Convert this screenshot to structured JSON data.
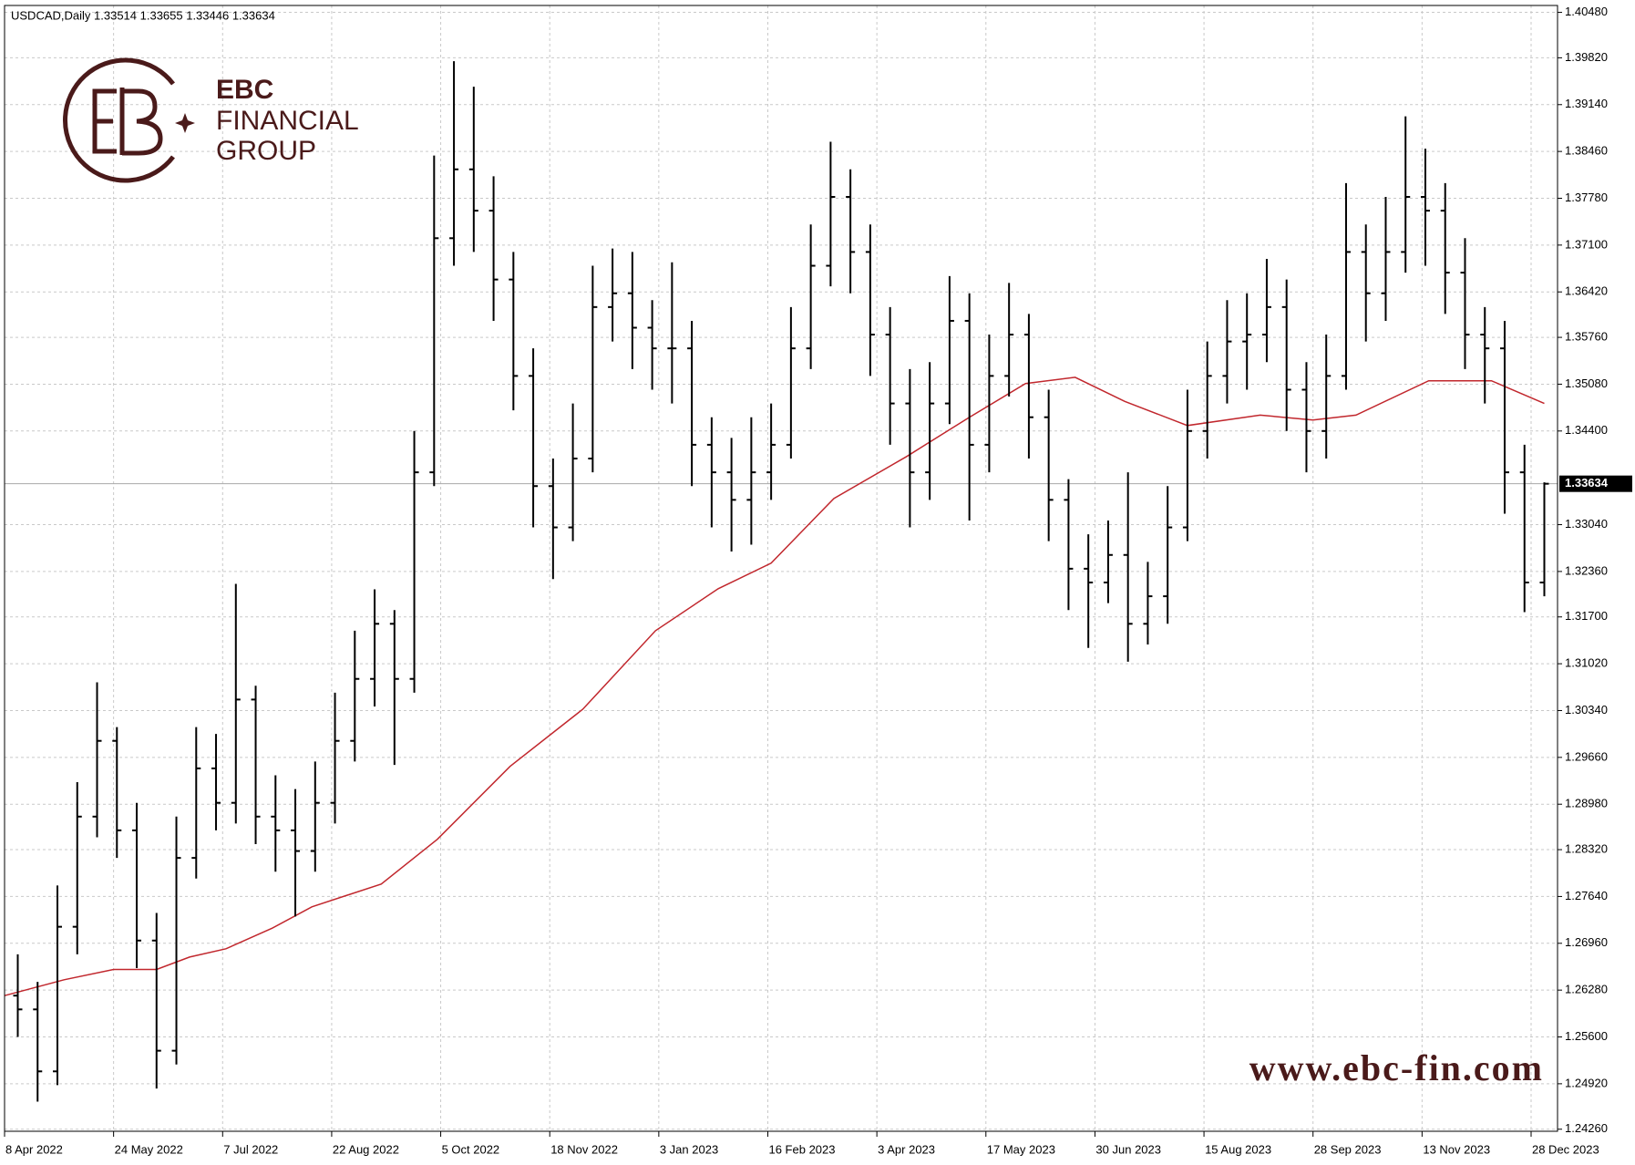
{
  "chart_data": {
    "type": "ohlc",
    "title": "USDCAD,Daily  1.33514 1.33655 1.33446 1.33634",
    "logo": [
      "EBC",
      "FINANCIAL",
      "GROUP"
    ],
    "watermark": "www.ebc-fin.com",
    "color": "#000000",
    "grid": true,
    "xlim": [
      0,
      470
    ],
    "ylim": [
      1.2423,
      1.4058
    ],
    "xticks": [
      {
        "value": 0,
        "label": "8 Apr 2022"
      },
      {
        "value": 33,
        "label": "24 May 2022"
      },
      {
        "value": 66,
        "label": "7 Jul 2022"
      },
      {
        "value": 99,
        "label": "22 Aug 2022"
      },
      {
        "value": 132,
        "label": "5 Oct 2022"
      },
      {
        "value": 165,
        "label": "18 Nov 2022"
      },
      {
        "value": 198,
        "label": "3 Jan 2023"
      },
      {
        "value": 231,
        "label": "16 Feb 2023"
      },
      {
        "value": 264,
        "label": "3 Apr 2023"
      },
      {
        "value": 297,
        "label": "17 May 2023"
      },
      {
        "value": 330,
        "label": "30 Jun 2023"
      },
      {
        "value": 363,
        "label": "15 Aug 2023"
      },
      {
        "value": 396,
        "label": "28 Sep 2023"
      },
      {
        "value": 429,
        "label": "13 Nov 2023"
      },
      {
        "value": 462,
        "label": "28 Dec 2023"
      }
    ],
    "yticks": [
      {
        "value": 1.4048,
        "label": "1.40480"
      },
      {
        "value": 1.3982,
        "label": "1.39820"
      },
      {
        "value": 1.3914,
        "label": "1.39140"
      },
      {
        "value": 1.3846,
        "label": "1.38460"
      },
      {
        "value": 1.3778,
        "label": "1.37780"
      },
      {
        "value": 1.371,
        "label": "1.37100"
      },
      {
        "value": 1.3642,
        "label": "1.36420"
      },
      {
        "value": 1.3576,
        "label": "1.35760"
      },
      {
        "value": 1.3508,
        "label": "1.35080"
      },
      {
        "value": 1.344,
        "label": "1.34400"
      },
      {
        "value": 1.3304,
        "label": "1.33040"
      },
      {
        "value": 1.3236,
        "label": "1.32360"
      },
      {
        "value": 1.317,
        "label": "1.31700"
      },
      {
        "value": 1.3102,
        "label": "1.31020"
      },
      {
        "value": 1.3034,
        "label": "1.30340"
      },
      {
        "value": 1.2966,
        "label": "1.29660"
      },
      {
        "value": 1.2898,
        "label": "1.28980"
      },
      {
        "value": 1.2832,
        "label": "1.28320"
      },
      {
        "value": 1.2764,
        "label": "1.27640"
      },
      {
        "value": 1.2696,
        "label": "1.26960"
      },
      {
        "value": 1.2628,
        "label": "1.26280"
      },
      {
        "value": 1.256,
        "label": "1.25600"
      },
      {
        "value": 1.2492,
        "label": "1.24920"
      },
      {
        "value": 1.2426,
        "label": "1.24260"
      }
    ],
    "last_price": {
      "value": 1.33634,
      "label": "1.33634"
    },
    "x": [
      4,
      10,
      16,
      22,
      28,
      34,
      40,
      46,
      52,
      58,
      64,
      70,
      76,
      82,
      88,
      94,
      100,
      106,
      112,
      118,
      124,
      130,
      136,
      142,
      148,
      154,
      160,
      166,
      172,
      178,
      184,
      190,
      196,
      202,
      208,
      214,
      220,
      226,
      232,
      238,
      244,
      250,
      256,
      262,
      268,
      274,
      280,
      286,
      292,
      298,
      304,
      310,
      316,
      322,
      328,
      334,
      340,
      346,
      352,
      358,
      364,
      370,
      376,
      382,
      388,
      394,
      400,
      406,
      412,
      418,
      424,
      430,
      436,
      442,
      448,
      454,
      460,
      466
    ],
    "open": [
      1.262,
      1.26,
      1.251,
      1.272,
      1.288,
      1.299,
      1.286,
      1.27,
      1.254,
      1.282,
      1.295,
      1.29,
      1.305,
      1.288,
      1.286,
      1.283,
      1.29,
      1.299,
      1.308,
      1.316,
      1.308,
      1.338,
      1.372,
      1.382,
      1.376,
      1.366,
      1.352,
      1.336,
      1.33,
      1.34,
      1.362,
      1.364,
      1.359,
      1.356,
      1.356,
      1.342,
      1.338,
      1.334,
      1.338,
      1.342,
      1.356,
      1.368,
      1.378,
      1.37,
      1.358,
      1.348,
      1.338,
      1.348,
      1.36,
      1.342,
      1.352,
      1.358,
      1.346,
      1.334,
      1.324,
      1.322,
      1.326,
      1.316,
      1.32,
      1.33,
      1.344,
      1.352,
      1.357,
      1.358,
      1.362,
      1.35,
      1.344,
      1.352,
      1.37,
      1.364,
      1.37,
      1.378,
      1.376,
      1.367,
      1.358,
      1.356,
      1.338,
      1.322
    ],
    "high": [
      1.268,
      1.264,
      1.278,
      1.293,
      1.3075,
      1.301,
      1.29,
      1.274,
      1.288,
      1.301,
      1.3,
      1.3218,
      1.307,
      1.294,
      1.292,
      1.296,
      1.306,
      1.315,
      1.321,
      1.318,
      1.344,
      1.384,
      1.3977,
      1.394,
      1.381,
      1.37,
      1.356,
      1.34,
      1.348,
      1.368,
      1.3705,
      1.37,
      1.363,
      1.3685,
      1.36,
      1.346,
      1.343,
      1.346,
      1.348,
      1.362,
      1.374,
      1.386,
      1.382,
      1.374,
      1.362,
      1.353,
      1.354,
      1.3665,
      1.364,
      1.358,
      1.3655,
      1.361,
      1.35,
      1.337,
      1.329,
      1.331,
      1.338,
      1.325,
      1.336,
      1.35,
      1.357,
      1.363,
      1.364,
      1.369,
      1.366,
      1.354,
      1.358,
      1.38,
      1.374,
      1.378,
      1.3897,
      1.385,
      1.38,
      1.372,
      1.362,
      1.36,
      1.342,
      1.33655
    ],
    "low": [
      1.256,
      1.2466,
      1.249,
      1.268,
      1.285,
      1.282,
      1.266,
      1.2485,
      1.252,
      1.279,
      1.286,
      1.287,
      1.284,
      1.28,
      1.2735,
      1.28,
      1.287,
      1.296,
      1.304,
      1.2955,
      1.306,
      1.336,
      1.368,
      1.37,
      1.36,
      1.347,
      1.33,
      1.3225,
      1.328,
      1.338,
      1.357,
      1.353,
      1.35,
      1.348,
      1.336,
      1.33,
      1.3265,
      1.3275,
      1.334,
      1.34,
      1.353,
      1.365,
      1.364,
      1.352,
      1.342,
      1.33,
      1.334,
      1.345,
      1.331,
      1.338,
      1.349,
      1.34,
      1.328,
      1.318,
      1.3125,
      1.319,
      1.3105,
      1.313,
      1.316,
      1.328,
      1.34,
      1.348,
      1.35,
      1.354,
      1.344,
      1.338,
      1.34,
      1.35,
      1.357,
      1.36,
      1.367,
      1.368,
      1.361,
      1.353,
      1.348,
      1.332,
      1.3177,
      1.32
    ],
    "close": [
      1.26,
      1.251,
      1.272,
      1.288,
      1.299,
      1.286,
      1.27,
      1.254,
      1.282,
      1.295,
      1.29,
      1.305,
      1.288,
      1.286,
      1.283,
      1.29,
      1.299,
      1.308,
      1.316,
      1.308,
      1.338,
      1.372,
      1.382,
      1.376,
      1.366,
      1.352,
      1.336,
      1.33,
      1.34,
      1.362,
      1.364,
      1.359,
      1.356,
      1.356,
      1.342,
      1.338,
      1.334,
      1.338,
      1.342,
      1.356,
      1.368,
      1.378,
      1.37,
      1.358,
      1.348,
      1.338,
      1.348,
      1.36,
      1.342,
      1.352,
      1.358,
      1.346,
      1.334,
      1.324,
      1.322,
      1.326,
      1.316,
      1.32,
      1.33,
      1.344,
      1.352,
      1.357,
      1.358,
      1.362,
      1.35,
      1.344,
      1.352,
      1.37,
      1.364,
      1.37,
      1.378,
      1.376,
      1.367,
      1.358,
      1.356,
      1.338,
      1.322,
      1.33634
    ],
    "moving_average": {
      "color": "#c1272d",
      "x": [
        0,
        18,
        33,
        46,
        56,
        67,
        81,
        93,
        114,
        131,
        153,
        175,
        197,
        216,
        232,
        251,
        273,
        292,
        309,
        324,
        339,
        358,
        380,
        396,
        409,
        431,
        450,
        466
      ],
      "values": [
        1.262,
        1.2643,
        1.2658,
        1.2658,
        1.2676,
        1.2688,
        1.2718,
        1.2749,
        1.2782,
        1.2847,
        1.2953,
        1.3036,
        1.315,
        1.3211,
        1.3248,
        1.3342,
        1.3403,
        1.346,
        1.3509,
        1.3518,
        1.3483,
        1.3448,
        1.3463,
        1.3456,
        1.3463,
        1.3513,
        1.3513,
        1.348
      ]
    }
  }
}
